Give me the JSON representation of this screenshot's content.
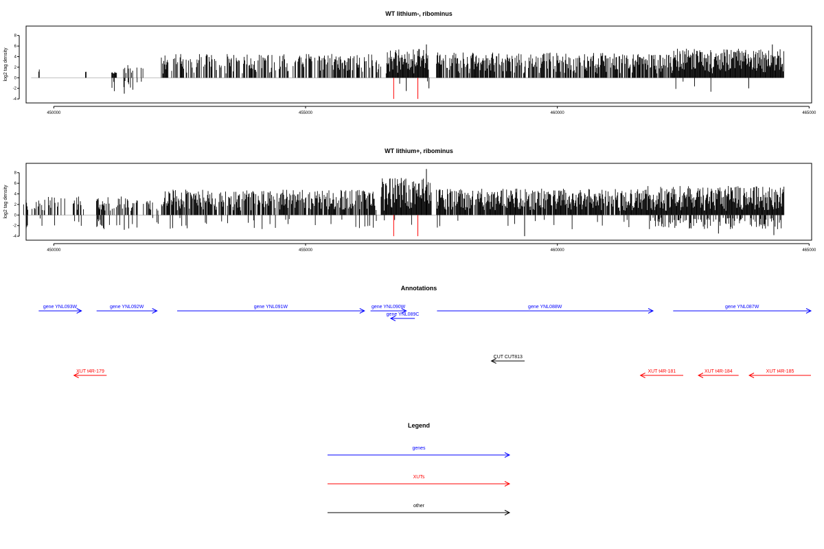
{
  "colors": {
    "genes": "#0000ff",
    "xuts": "#ff0000",
    "other": "#000000",
    "baseline": "#bebebe",
    "highlight": "#ff0000"
  },
  "chart_data": [
    {
      "type": "bar",
      "title": "WT lithium-, ribominus",
      "ylabel": "log2 tag density",
      "xticks": [
        450000,
        455000,
        460000,
        465000
      ],
      "xlim": [
        449450,
        465050
      ],
      "yticks": [
        -4,
        -2,
        0,
        2,
        4,
        6,
        8
      ],
      "ylim": [
        -4.5,
        9
      ],
      "seed": 11,
      "segments": [
        {
          "start": 449700,
          "end": 449720,
          "max": 1.8,
          "dens": 1,
          "neg": 0
        },
        {
          "start": 450630,
          "end": 450650,
          "max": 1.2,
          "dens": 1,
          "neg": 0
        },
        {
          "start": 451150,
          "end": 451250,
          "max": 1.2,
          "dens": 1,
          "neg": 0.6
        },
        {
          "start": 451350,
          "end": 451800,
          "max": 2.4,
          "dens": 0.3,
          "neg": 0.6
        },
        {
          "start": 452100,
          "end": 456500,
          "max": 4.5,
          "dens": 0.55,
          "neg": 0
        },
        {
          "start": 456600,
          "end": 457450,
          "max": 5.5,
          "dens": 1,
          "neg": 0.05
        },
        {
          "start": 457600,
          "end": 461400,
          "max": 4.8,
          "dens": 0.75,
          "neg": 0
        },
        {
          "start": 461400,
          "end": 462300,
          "max": 4.5,
          "dens": 0.8,
          "neg": 0
        },
        {
          "start": 462300,
          "end": 464500,
          "max": 5.5,
          "dens": 1,
          "neg": 0.02
        }
      ],
      "highlights": [
        {
          "x": 456750,
          "y": -4
        },
        {
          "x": 457230,
          "y": -4
        }
      ],
      "extra_negatives": [
        {
          "x": 451400,
          "y": -3
        },
        {
          "x": 457000,
          "y": -2.5
        },
        {
          "x": 457450,
          "y": -2
        },
        {
          "x": 463800,
          "y": -2
        }
      ],
      "extra_positives": [
        {
          "x": 457400,
          "y": 6.3
        },
        {
          "x": 464270,
          "y": 6.3
        }
      ]
    },
    {
      "type": "bar",
      "title": "WT lithium+, ribominus",
      "ylabel": "log2 tag density",
      "xticks": [
        450000,
        455000,
        460000,
        465000
      ],
      "xlim": [
        449450,
        465050
      ],
      "yticks": [
        -4,
        -2,
        0,
        2,
        4,
        6,
        8
      ],
      "ylim": [
        -4.5,
        9
      ],
      "seed": 23,
      "segments": [
        {
          "start": 449400,
          "end": 450600,
          "max": 3.5,
          "dens": 0.35,
          "neg": 0.3
        },
        {
          "start": 450800,
          "end": 451600,
          "max": 3.5,
          "dens": 0.6,
          "neg": 0.3
        },
        {
          "start": 451600,
          "end": 452200,
          "max": 3.0,
          "dens": 0.3,
          "neg": 0.3
        },
        {
          "start": 452200,
          "end": 456400,
          "max": 4.8,
          "dens": 0.8,
          "neg": 0.08
        },
        {
          "start": 456500,
          "end": 457500,
          "max": 7.0,
          "dens": 1,
          "neg": 0.05
        },
        {
          "start": 457600,
          "end": 461800,
          "max": 5.0,
          "dens": 0.9,
          "neg": 0.05
        },
        {
          "start": 461800,
          "end": 464500,
          "max": 5.5,
          "dens": 1,
          "neg": 0.4
        }
      ],
      "highlights": [
        {
          "x": 456750,
          "y": -4
        },
        {
          "x": 457230,
          "y": -4
        }
      ],
      "extra_negatives": [
        {
          "x": 451400,
          "y": -2.8
        },
        {
          "x": 459350,
          "y": -4
        },
        {
          "x": 463200,
          "y": -3.5
        },
        {
          "x": 464300,
          "y": -3.8
        }
      ],
      "extra_positives": [
        {
          "x": 457400,
          "y": 8.7
        },
        {
          "x": 456900,
          "y": 7.0
        }
      ]
    }
  ],
  "annotations": {
    "title": "Annotations",
    "rows": [
      [
        {
          "label": "gene YNL093W",
          "start": 449700,
          "end": 450550,
          "dir": "right",
          "kind": "genes"
        },
        {
          "label": "gene YNL092W",
          "start": 450850,
          "end": 452050,
          "dir": "right",
          "kind": "genes"
        },
        {
          "label": "gene YNL091W",
          "start": 452450,
          "end": 456170,
          "dir": "right",
          "kind": "genes"
        },
        {
          "label": "gene YNL090W",
          "start": 456290,
          "end": 457000,
          "dir": "right",
          "kind": "genes"
        },
        {
          "label": "gene YNL088W",
          "start": 457610,
          "end": 461900,
          "dir": "right",
          "kind": "genes"
        },
        {
          "label": "gene YNL087W",
          "start": 462300,
          "end": 465050,
          "dir": "right",
          "kind": "genes"
        }
      ],
      [
        {
          "label": "gene YNL089C",
          "start": 456690,
          "end": 457170,
          "dir": "left",
          "kind": "genes"
        }
      ],
      [
        {
          "label": "CUT CUT813",
          "start": 458690,
          "end": 459350,
          "dir": "left",
          "kind": "other"
        }
      ],
      [
        {
          "label": "XUT t4R-179",
          "start": 450400,
          "end": 451050,
          "dir": "left",
          "kind": "xuts"
        },
        {
          "label": "XUT t4R-181",
          "start": 461650,
          "end": 462500,
          "dir": "left",
          "kind": "xuts"
        },
        {
          "label": "XUT t4R-184",
          "start": 462800,
          "end": 463600,
          "dir": "left",
          "kind": "xuts"
        },
        {
          "label": "XUT t4R-185",
          "start": 463810,
          "end": 465050,
          "dir": "left",
          "kind": "xuts"
        }
      ]
    ]
  },
  "legend": {
    "title": "Legend",
    "items": [
      {
        "label": "genes",
        "kind": "genes"
      },
      {
        "label": "XUTs",
        "kind": "xuts"
      },
      {
        "label": "other",
        "kind": "other"
      }
    ]
  }
}
